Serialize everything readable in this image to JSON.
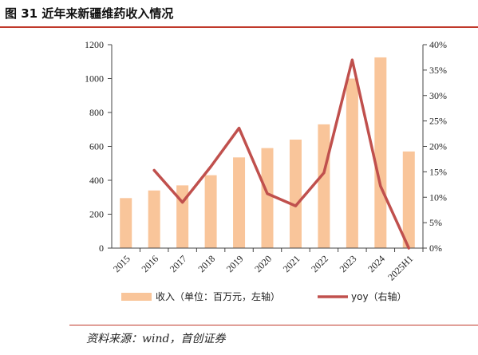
{
  "title": "图 31  近年来新疆维药收入情况",
  "source": "资料来源：wind，首创证券",
  "colors": {
    "bar": "#f9c59a",
    "line": "#c0504d",
    "rule": "#c0392b"
  },
  "chart_data": {
    "type": "bar",
    "categories": [
      "2015",
      "2016",
      "2017",
      "2018",
      "2019",
      "2020",
      "2021",
      "2022",
      "2023",
      "2024",
      "2025H1"
    ],
    "series": [
      {
        "name": "收入（单位：百万元，左轴）",
        "type": "bar",
        "axis": "left",
        "values": [
          295,
          340,
          370,
          430,
          535,
          590,
          640,
          730,
          1000,
          1125,
          570
        ]
      },
      {
        "name": "yoy（右轴）",
        "type": "line",
        "axis": "right",
        "values": [
          null,
          15.3,
          9.0,
          16.0,
          23.6,
          10.7,
          8.3,
          14.8,
          37.0,
          12.2,
          0
        ]
      }
    ],
    "y_left": {
      "ticks": [
        "0",
        "200",
        "400",
        "600",
        "800",
        "1000",
        "1200"
      ],
      "min": 0,
      "max": 1200
    },
    "y_right": {
      "ticks": [
        "0%",
        "5%",
        "10%",
        "15%",
        "20%",
        "25%",
        "30%",
        "35%",
        "40%"
      ],
      "min": 0,
      "max": 40
    },
    "grid": false,
    "legend_position": "bottom"
  }
}
